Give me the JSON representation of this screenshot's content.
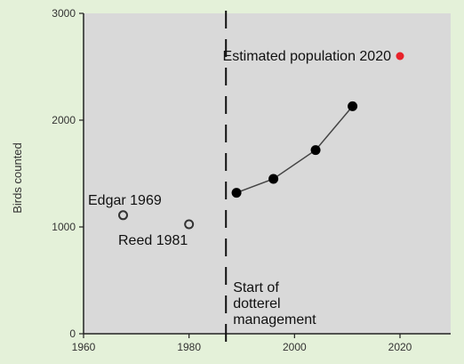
{
  "chart_data": {
    "type": "scatter",
    "ylabel": "Birds counted",
    "xlabel": "",
    "xlim": [
      1960,
      2010
    ],
    "ylim": [
      0,
      3000
    ],
    "x_ticks": [
      1960,
      1980,
      2000,
      2020
    ],
    "y_ticks": [
      0,
      1000,
      2000,
      3000
    ],
    "grid": false,
    "colors": {
      "background": "#e4f1d9",
      "plot_area": "#d9d9d9",
      "counts": "#000000",
      "estimate": "#e8222a",
      "historic_outline": "#333333"
    },
    "historic_counts": [
      {
        "label": "Edgar 1969",
        "x": 1967.5,
        "y": 1110
      },
      {
        "label": "Reed 1981",
        "x": 1980,
        "y": 1025
      }
    ],
    "series": [
      {
        "x": [
          1989,
          1996,
          2004,
          2011
        ],
        "y": [
          1320,
          1450,
          1720,
          2130
        ]
      }
    ],
    "estimate": {
      "label": "Estimated population 2020",
      "x": 2020,
      "y": 2600
    },
    "management_start": {
      "x": 1987,
      "label_lines": [
        "Start of",
        "dotterel",
        "management"
      ]
    }
  }
}
